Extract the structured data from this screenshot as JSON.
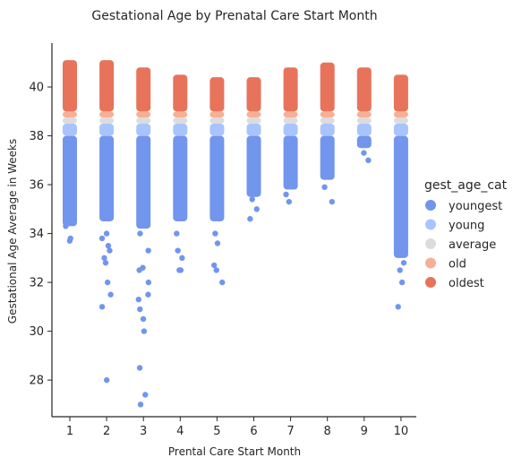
{
  "chart_data": {
    "type": "scatter",
    "subtype": "stripplot",
    "title": "Gestational Age by Prenatal Care Start Month",
    "xlabel": "Prental Care Start Month",
    "ylabel": "Gestational Age Average in Weeks",
    "categories": [
      "1",
      "2",
      "3",
      "4",
      "5",
      "6",
      "7",
      "8",
      "9",
      "10"
    ],
    "ylim": [
      26.5,
      41.8
    ],
    "yticks": [
      28,
      30,
      32,
      34,
      36,
      38,
      40
    ],
    "grid": false,
    "legend": {
      "title": "gest_age_cat",
      "placement": "right",
      "entries": [
        {
          "name": "youngest",
          "color": "#7295ed"
        },
        {
          "name": "young",
          "color": "#a9c4fc"
        },
        {
          "name": "average",
          "color": "#dddcdc"
        },
        {
          "name": "old",
          "color": "#f5b096"
        },
        {
          "name": "oldest",
          "color": "#e8735b"
        }
      ]
    },
    "band_ranges": {
      "young": [
        38.0,
        38.5
      ],
      "average": [
        38.5,
        38.75
      ],
      "old": [
        38.75,
        39.0
      ]
    },
    "series": [
      {
        "name": "youngest",
        "color": "#7295ed",
        "ranges": [
          [
            34.3,
            38.0
          ],
          [
            34.5,
            38.0
          ],
          [
            34.2,
            38.0
          ],
          [
            34.5,
            38.0
          ],
          [
            34.5,
            38.0
          ],
          [
            35.5,
            38.0
          ],
          [
            35.8,
            38.0
          ],
          [
            36.2,
            38.0
          ],
          [
            37.5,
            38.0
          ],
          [
            33.0,
            38.0
          ]
        ],
        "points": [
          [
            1,
            33.7
          ],
          [
            1,
            33.8
          ],
          [
            1,
            34.3
          ],
          [
            1,
            34.6
          ],
          [
            1,
            34.8
          ],
          [
            2,
            28.0
          ],
          [
            2,
            31.0
          ],
          [
            2,
            31.5
          ],
          [
            2,
            32.0
          ],
          [
            2,
            32.8
          ],
          [
            2,
            33.0
          ],
          [
            2,
            33.3
          ],
          [
            2,
            33.5
          ],
          [
            2,
            33.8
          ],
          [
            2,
            34.0
          ],
          [
            3,
            27.0
          ],
          [
            3,
            27.4
          ],
          [
            3,
            28.5
          ],
          [
            3,
            30.0
          ],
          [
            3,
            30.5
          ],
          [
            3,
            30.9
          ],
          [
            3,
            31.3
          ],
          [
            3,
            31.5
          ],
          [
            3,
            32.0
          ],
          [
            3,
            32.5
          ],
          [
            3,
            32.6
          ],
          [
            3,
            33.3
          ],
          [
            3,
            34.0
          ],
          [
            4,
            32.5
          ],
          [
            4,
            32.5
          ],
          [
            4,
            33.0
          ],
          [
            4,
            33.3
          ],
          [
            4,
            34.0
          ],
          [
            5,
            32.0
          ],
          [
            5,
            32.5
          ],
          [
            5,
            32.7
          ],
          [
            5,
            33.6
          ],
          [
            5,
            34.0
          ],
          [
            6,
            34.6
          ],
          [
            6,
            35.0
          ],
          [
            6,
            35.4
          ],
          [
            7,
            35.3
          ],
          [
            7,
            35.6
          ],
          [
            8,
            35.3
          ],
          [
            8,
            35.9
          ],
          [
            9,
            37.0
          ],
          [
            9,
            37.3
          ],
          [
            10,
            31.0
          ],
          [
            10,
            32.0
          ],
          [
            10,
            32.5
          ],
          [
            10,
            32.8
          ]
        ]
      },
      {
        "name": "oldest",
        "color": "#e8735b",
        "ranges": [
          [
            39.0,
            41.1
          ],
          [
            39.0,
            41.1
          ],
          [
            39.0,
            40.8
          ],
          [
            39.0,
            40.5
          ],
          [
            39.0,
            40.4
          ],
          [
            39.0,
            40.4
          ],
          [
            39.0,
            40.8
          ],
          [
            39.0,
            41.0
          ],
          [
            39.0,
            40.8
          ],
          [
            39.0,
            40.5
          ]
        ]
      }
    ]
  }
}
